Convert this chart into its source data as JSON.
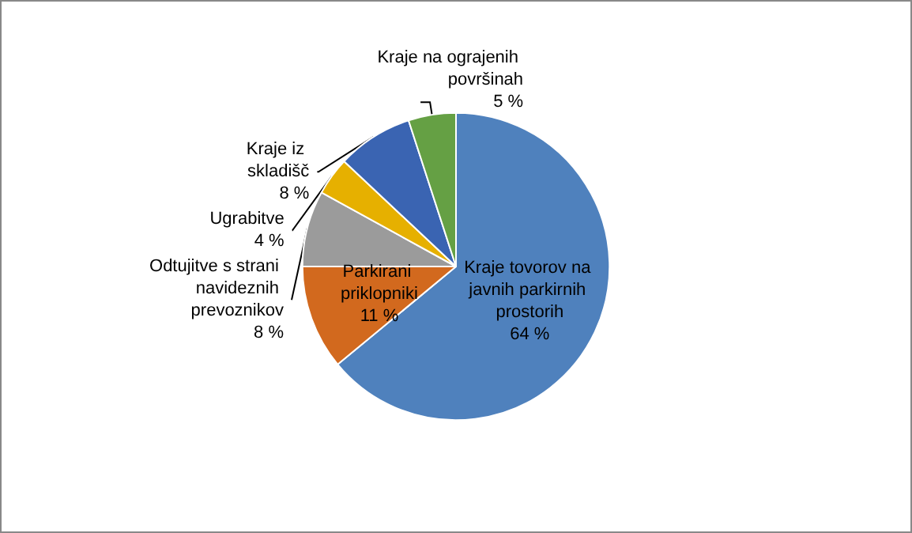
{
  "chart_data": {
    "type": "pie",
    "categories": [
      "Kraje tovorov na javnih parkirnih prostorih",
      "Parkirani priklopniki",
      "Odtujitve s strani navideznih prevoznikov",
      "Ugrabitve",
      "Kraje iz skladišč",
      "Kraje na ograjenih površinah"
    ],
    "values": [
      64,
      11,
      8,
      4,
      8,
      5
    ],
    "value_labels": [
      "64 %",
      "11 %",
      "8 %",
      "4 %",
      "8 %",
      "5 %"
    ],
    "colors": [
      "#4f81bd",
      "#d2691e",
      "#9b9b9b",
      "#e6b000",
      "#3a64b2",
      "#65a044"
    ],
    "legend": false
  }
}
